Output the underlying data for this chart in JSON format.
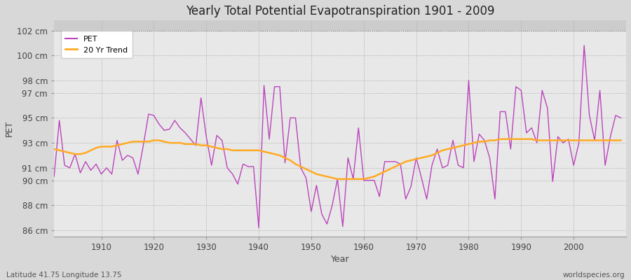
{
  "title": "Yearly Total Potential Evapotranspiration 1901 - 2009",
  "xlabel": "Year",
  "ylabel": "PET",
  "subtitle_left": "Latitude 41.75 Longitude 13.75",
  "subtitle_right": "worldspecies.org",
  "pet_color": "#bb44bb",
  "trend_color": "#ffaa22",
  "fig_bg_color": "#d8d8d8",
  "plot_bg_color": "#e8e8e8",
  "top_band_color": "#d0d0d0",
  "ylim": [
    85.5,
    102.8
  ],
  "top_line_y": 102,
  "years": [
    1901,
    1902,
    1903,
    1904,
    1905,
    1906,
    1907,
    1908,
    1909,
    1910,
    1911,
    1912,
    1913,
    1914,
    1915,
    1916,
    1917,
    1918,
    1919,
    1920,
    1921,
    1922,
    1923,
    1924,
    1925,
    1926,
    1927,
    1928,
    1929,
    1930,
    1931,
    1932,
    1933,
    1934,
    1935,
    1936,
    1937,
    1938,
    1939,
    1940,
    1941,
    1942,
    1943,
    1944,
    1945,
    1946,
    1947,
    1948,
    1949,
    1950,
    1951,
    1952,
    1953,
    1954,
    1955,
    1956,
    1957,
    1958,
    1959,
    1960,
    1961,
    1962,
    1963,
    1964,
    1965,
    1966,
    1967,
    1968,
    1969,
    1970,
    1971,
    1972,
    1973,
    1974,
    1975,
    1976,
    1977,
    1978,
    1979,
    1980,
    1981,
    1982,
    1983,
    1984,
    1985,
    1986,
    1987,
    1988,
    1989,
    1990,
    1991,
    1992,
    1993,
    1994,
    1995,
    1996,
    1997,
    1998,
    1999,
    2000,
    2001,
    2002,
    2003,
    2004,
    2005,
    2006,
    2007,
    2008,
    2009
  ],
  "pet": [
    90.3,
    94.8,
    91.2,
    91.0,
    92.1,
    90.6,
    91.5,
    90.8,
    91.3,
    90.5,
    91.0,
    90.5,
    93.2,
    91.6,
    92.0,
    91.8,
    90.5,
    92.8,
    95.3,
    95.2,
    94.5,
    94.0,
    94.1,
    94.8,
    94.2,
    93.8,
    93.3,
    92.8,
    96.6,
    93.5,
    91.2,
    93.6,
    93.2,
    91.0,
    90.5,
    89.7,
    91.3,
    91.1,
    91.1,
    86.2,
    97.6,
    93.3,
    97.5,
    97.5,
    91.4,
    95.0,
    95.0,
    91.0,
    90.2,
    87.5,
    89.6,
    87.3,
    86.5,
    88.0,
    90.1,
    86.3,
    91.8,
    90.1,
    94.2,
    90.0,
    90.0,
    90.0,
    88.7,
    91.5,
    91.5,
    91.5,
    91.3,
    88.5,
    89.5,
    91.8,
    90.2,
    88.5,
    91.2,
    92.5,
    91.0,
    91.2,
    93.2,
    91.2,
    91.0,
    98.0,
    91.5,
    93.7,
    93.2,
    91.8,
    88.5,
    95.5,
    95.5,
    92.5,
    97.5,
    97.2,
    93.8,
    94.2,
    93.0,
    97.2,
    95.8,
    89.9,
    93.5,
    93.0,
    93.3,
    91.2,
    93.0,
    100.8,
    95.2,
    93.2,
    97.2,
    91.2,
    93.5,
    95.2,
    95.0
  ],
  "trend": [
    92.5,
    92.4,
    92.3,
    92.2,
    92.1,
    92.1,
    92.2,
    92.4,
    92.6,
    92.7,
    92.7,
    92.7,
    92.8,
    92.9,
    93.0,
    93.1,
    93.1,
    93.1,
    93.1,
    93.2,
    93.2,
    93.1,
    93.0,
    93.0,
    93.0,
    92.9,
    92.9,
    92.9,
    92.8,
    92.8,
    92.7,
    92.6,
    92.5,
    92.5,
    92.4,
    92.4,
    92.4,
    92.4,
    92.4,
    92.4,
    92.3,
    92.2,
    92.1,
    92.0,
    91.8,
    91.6,
    91.3,
    91.1,
    90.9,
    90.7,
    90.5,
    90.4,
    90.3,
    90.2,
    90.1,
    90.1,
    90.1,
    90.1,
    90.1,
    90.1,
    90.2,
    90.3,
    90.5,
    90.7,
    90.9,
    91.1,
    91.3,
    91.5,
    91.6,
    91.7,
    91.8,
    91.9,
    92.0,
    92.2,
    92.4,
    92.5,
    92.6,
    92.7,
    92.8,
    92.9,
    93.0,
    93.1,
    93.1,
    93.2,
    93.2,
    93.3,
    93.3,
    93.3,
    93.3,
    93.3,
    93.3,
    93.3,
    93.2,
    93.2,
    93.2,
    93.2,
    93.2,
    93.2,
    93.2,
    93.2,
    93.2,
    93.2,
    93.2,
    93.2,
    93.2,
    93.2,
    93.2,
    93.2,
    93.2
  ],
  "yticks": [
    86,
    88,
    90,
    91,
    93,
    95,
    97,
    98,
    100,
    102
  ],
  "ytick_labels": [
    "86 cm",
    "88 cm",
    "90 cm",
    "91 cm",
    "93 cm",
    "95 cm",
    "97 cm",
    "98 cm",
    "100 cm",
    "102 cm"
  ],
  "xticks": [
    1910,
    1920,
    1930,
    1940,
    1950,
    1960,
    1970,
    1980,
    1990,
    2000
  ]
}
